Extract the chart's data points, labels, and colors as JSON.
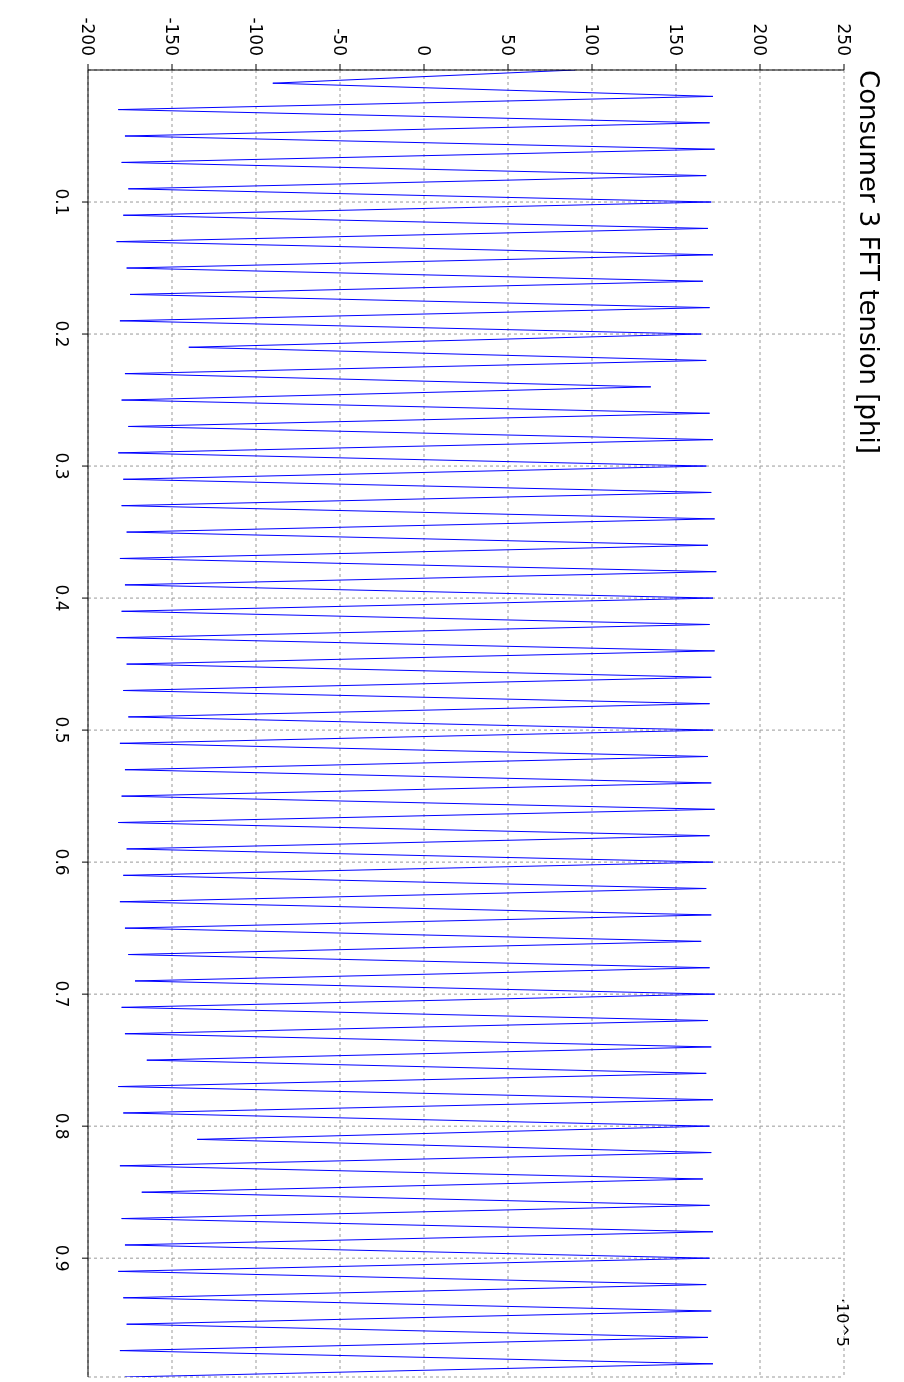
{
  "chart_data": {
    "type": "line",
    "title": "Consumer 3 FFT tension [phi]",
    "annotations": [
      "·10^5"
    ],
    "x": [
      90,
      -90,
      172,
      -182,
      170,
      -178,
      173,
      -180,
      168,
      -176,
      171,
      -179,
      169,
      -183,
      172,
      -177,
      166,
      -175,
      170,
      -181,
      165,
      -140,
      168,
      -178,
      135,
      -180,
      170,
      -176,
      172,
      -182,
      168,
      -179,
      171,
      -180,
      173,
      -177,
      169,
      -181,
      174,
      -178,
      172,
      -180,
      170,
      -183,
      173,
      -177,
      171,
      -179,
      170,
      -176,
      172,
      -181,
      169,
      -178,
      171,
      -180,
      173,
      -182,
      170,
      -177,
      172,
      -179,
      168,
      -181,
      171,
      -178,
      165,
      -176,
      170,
      -172,
      173,
      -180,
      169,
      -178,
      171,
      -165,
      168,
      -182,
      172,
      -179,
      170,
      -135,
      171,
      -181,
      166,
      -168,
      170,
      -180,
      172,
      -178,
      170,
      -182,
      168,
      -179,
      171,
      -177,
      169,
      -181,
      172,
      -178
    ],
    "values": [
      0,
      0.01,
      0.02,
      0.03,
      0.04,
      0.05,
      0.06,
      0.07,
      0.08,
      0.09,
      0.1,
      0.11,
      0.12,
      0.13,
      0.14,
      0.15,
      0.16,
      0.17,
      0.18,
      0.19,
      0.2,
      0.21,
      0.22,
      0.23,
      0.24,
      0.25,
      0.26,
      0.27,
      0.28,
      0.29,
      0.3,
      0.31,
      0.32,
      0.33,
      0.34,
      0.35,
      0.36,
      0.37,
      0.38,
      0.39,
      0.4,
      0.41,
      0.42,
      0.43,
      0.44,
      0.45,
      0.46,
      0.47,
      0.48,
      0.49,
      0.5,
      0.51,
      0.52,
      0.53,
      0.54,
      0.55,
      0.56,
      0.57,
      0.58,
      0.59,
      0.6,
      0.61,
      0.62,
      0.63,
      0.64,
      0.65,
      0.66,
      0.67,
      0.68,
      0.69,
      0.7,
      0.71,
      0.72,
      0.73,
      0.74,
      0.75,
      0.76,
      0.77,
      0.78,
      0.79,
      0.8,
      0.81,
      0.82,
      0.83,
      0.84,
      0.85,
      0.86,
      0.87,
      0.88,
      0.89,
      0.9,
      0.91,
      0.92,
      0.93,
      0.94,
      0.95,
      0.96,
      0.97,
      0.98,
      0.99
    ],
    "color": "#0000ff",
    "xlim": [
      -200,
      250
    ],
    "ylim": [
      0.99,
      0
    ],
    "xticks": [
      -200,
      -150,
      -100,
      -50,
      0,
      50,
      100,
      150,
      200,
      250
    ],
    "yticks": [
      0.1,
      0.2,
      0.3,
      0.4,
      0.5,
      0.6,
      0.7,
      0.8,
      0.9
    ],
    "grid": true,
    "marker": "none",
    "line_style": "solid"
  }
}
